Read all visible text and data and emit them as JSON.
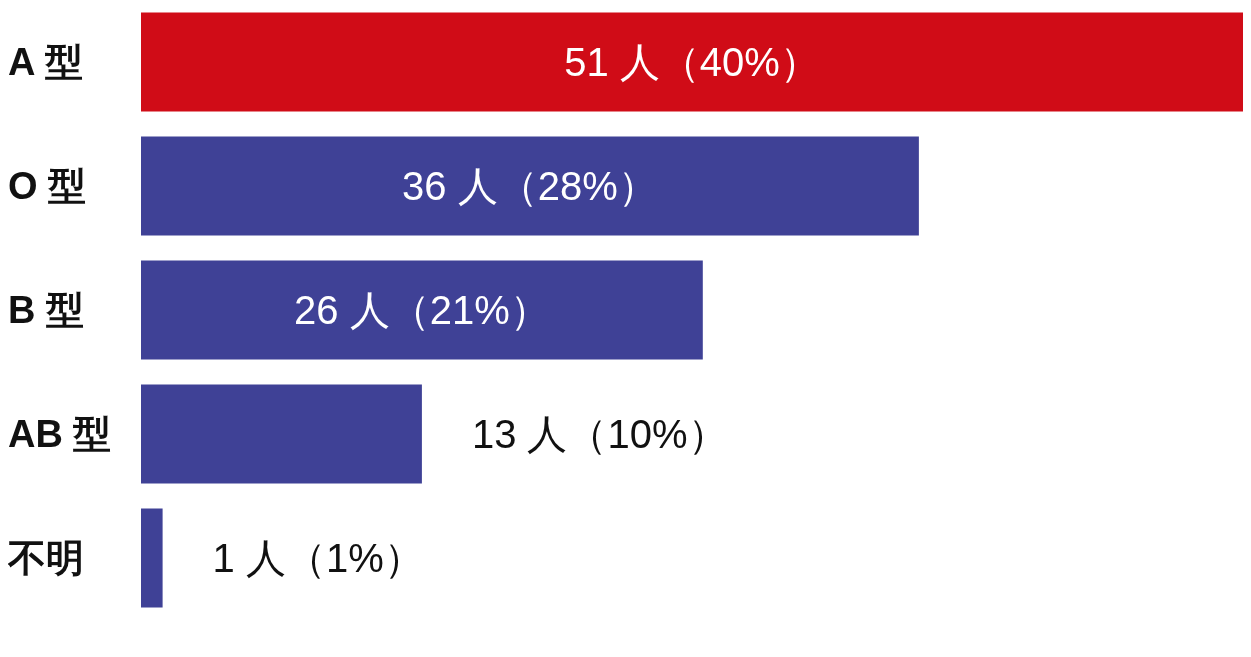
{
  "chart_data": {
    "type": "bar",
    "orientation": "horizontal",
    "categories": [
      "A 型",
      "O 型",
      "B 型",
      "AB 型",
      "不明"
    ],
    "values": [
      51,
      36,
      26,
      13,
      1
    ],
    "colors": [
      "#d00c17",
      "#3f4196",
      "#3f4196",
      "#3f4196",
      "#3f4196"
    ],
    "value_labels": [
      "51 人（40%）",
      "36 人（28%）",
      "26 人（21%）",
      "13 人（10%）",
      "1 人（1%）"
    ],
    "xlim": [
      0,
      51
    ],
    "tick_labels": "y",
    "grid": false,
    "legend": false
  }
}
